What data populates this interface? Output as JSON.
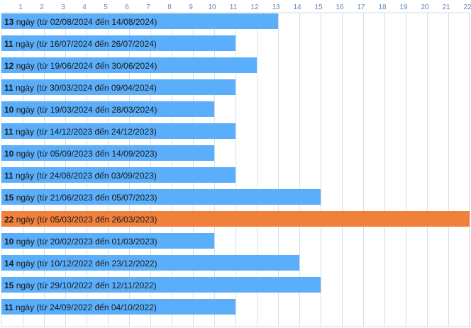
{
  "chart_data": {
    "type": "bar",
    "orientation": "horizontal",
    "x_ticks": [
      1,
      2,
      3,
      4,
      5,
      6,
      7,
      8,
      9,
      10,
      11,
      12,
      13,
      14,
      15,
      16,
      17,
      18,
      19,
      20,
      21,
      22
    ],
    "xlim": [
      0,
      22
    ],
    "grid": true,
    "unit_text": "ngày",
    "connector_from": "từ",
    "connector_to": "đến",
    "colors": {
      "bar": "#5aaefa",
      "highlight": "#f0803c",
      "grid": "#d8dee6",
      "axis_text": "#5a86b8"
    },
    "bars": [
      {
        "value": 13,
        "start": "02/08/2024",
        "end": "14/08/2024",
        "highlight": false
      },
      {
        "value": 11,
        "start": "16/07/2024",
        "end": "26/07/2024",
        "highlight": false
      },
      {
        "value": 12,
        "start": "19/06/2024",
        "end": "30/06/2024",
        "highlight": false
      },
      {
        "value": 11,
        "start": "30/03/2024",
        "end": "09/04/2024",
        "highlight": false
      },
      {
        "value": 10,
        "start": "19/03/2024",
        "end": "28/03/2024",
        "highlight": false
      },
      {
        "value": 11,
        "start": "14/12/2023",
        "end": "24/12/2023",
        "highlight": false
      },
      {
        "value": 10,
        "start": "05/09/2023",
        "end": "14/09/2023",
        "highlight": false
      },
      {
        "value": 11,
        "start": "24/08/2023",
        "end": "03/09/2023",
        "highlight": false
      },
      {
        "value": 15,
        "start": "21/06/2023",
        "end": "05/07/2023",
        "highlight": false
      },
      {
        "value": 22,
        "start": "05/03/2023",
        "end": "26/03/2023",
        "highlight": true
      },
      {
        "value": 10,
        "start": "20/02/2023",
        "end": "01/03/2023",
        "highlight": false
      },
      {
        "value": 14,
        "start": "10/12/2022",
        "end": "23/12/2022",
        "highlight": false
      },
      {
        "value": 15,
        "start": "29/10/2022",
        "end": "12/11/2022",
        "highlight": false
      },
      {
        "value": 11,
        "start": "24/09/2022",
        "end": "04/10/2022",
        "highlight": false
      }
    ]
  }
}
